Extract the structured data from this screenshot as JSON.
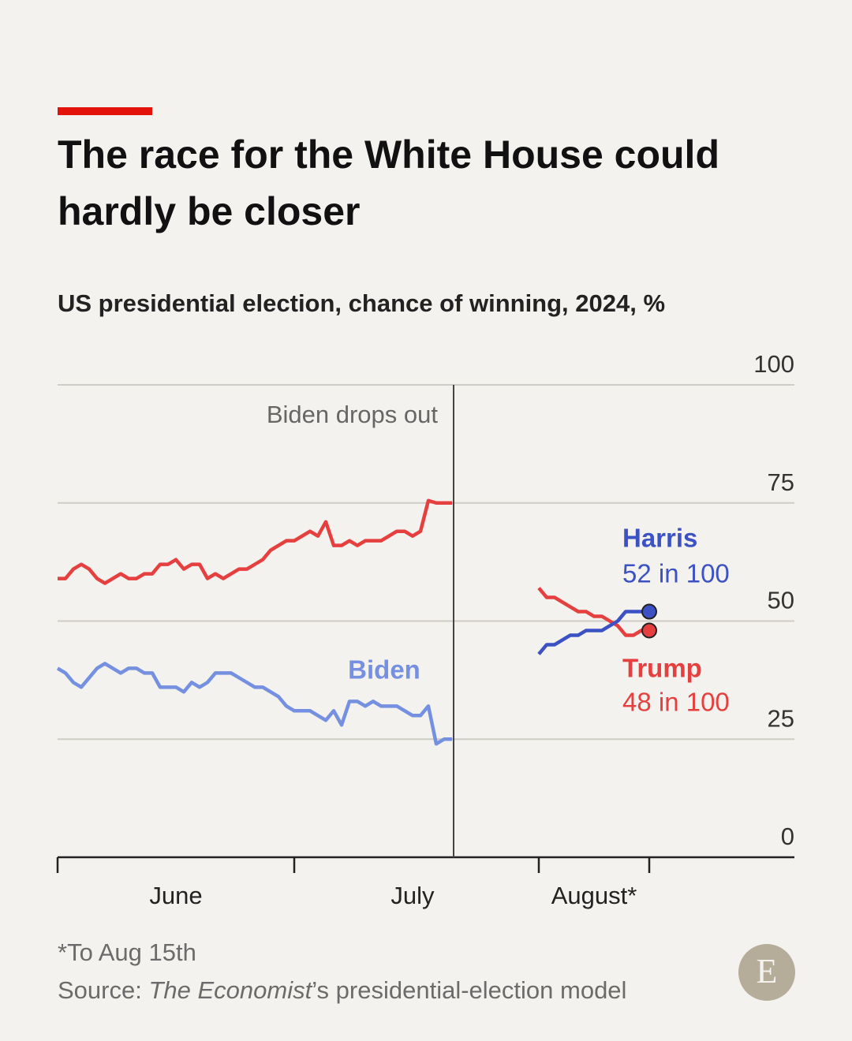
{
  "chart_data": {
    "type": "line",
    "title": "The race for the White House could hardly be closer",
    "subtitle": "US presidential election, chance of winning, 2024, %",
    "annotation": "Biden drops out",
    "footnote": "*To Aug 15th",
    "source": {
      "prefix": "Source:",
      "italic": "The Economist",
      "suffix": "’s presidential-election model"
    },
    "logo": "E",
    "categories": [
      null,
      null,
      null,
      null,
      null,
      null,
      null,
      null,
      null,
      null,
      null,
      null,
      null,
      null,
      null,
      "June",
      null,
      null,
      null,
      null,
      null,
      null,
      null,
      null,
      null,
      null,
      null,
      null,
      null,
      null,
      null,
      null,
      null,
      null,
      null,
      null,
      null,
      null,
      null,
      null,
      null,
      null,
      null,
      null,
      null,
      "July",
      null,
      null,
      null,
      null,
      null,
      null,
      null,
      null,
      null,
      null,
      null,
      null,
      null,
      null,
      null,
      null,
      null,
      null,
      null,
      null,
      null,
      null,
      "August*",
      null,
      null,
      null,
      null,
      null,
      null,
      null
    ],
    "ylim": [
      0,
      100
    ],
    "yticks": [
      0,
      25,
      50,
      75,
      100
    ],
    "grid": true,
    "series": [
      {
        "name": "Trump",
        "color": "#e5403f",
        "values": [
          59,
          59,
          61,
          62,
          61,
          59,
          58,
          59,
          60,
          59,
          59,
          60,
          60,
          62,
          62,
          63,
          61,
          62,
          62,
          59,
          60,
          59,
          60,
          61,
          61,
          62,
          63,
          65,
          66,
          67,
          67,
          68,
          69,
          68,
          71,
          66,
          66,
          67,
          66,
          67,
          67,
          67,
          68,
          69,
          69,
          68,
          69,
          75.5,
          75,
          75,
          75,
          null,
          null,
          null,
          null,
          null,
          null,
          null,
          null,
          null,
          null,
          57,
          55,
          55,
          54,
          53,
          52,
          52,
          51,
          51,
          50,
          49,
          47,
          47,
          48,
          48
        ],
        "value_labels": [
          null,
          null,
          null,
          null,
          null,
          null,
          null,
          null,
          null,
          null,
          null,
          null,
          null,
          null,
          null,
          null,
          null,
          null,
          null,
          null,
          null,
          null,
          null,
          null,
          null,
          null,
          null,
          null,
          null,
          null,
          null,
          null,
          null,
          null,
          null,
          null,
          null,
          null,
          null,
          null,
          null,
          null,
          null,
          null,
          null,
          null,
          null,
          null,
          null,
          null,
          null,
          null,
          null,
          null,
          null,
          null,
          null,
          null,
          null,
          null,
          null,
          null,
          null,
          null,
          null,
          null,
          null,
          null,
          null,
          null,
          null,
          null,
          null,
          null,
          null,
          "48 in 100"
        ]
      },
      {
        "name": "Biden",
        "color": "#7590e0",
        "values": [
          40,
          39,
          37,
          36,
          38,
          40,
          41,
          40,
          39,
          40,
          40,
          39,
          39,
          36,
          36,
          36,
          35,
          37,
          36,
          37,
          39,
          39,
          39,
          38,
          37,
          36,
          36,
          35,
          34,
          32,
          31,
          31,
          31,
          30,
          29,
          31,
          28,
          33,
          33,
          32,
          33,
          32,
          32,
          32,
          31,
          30,
          30,
          32,
          24,
          25,
          25,
          null,
          null,
          null,
          null,
          null,
          null,
          null,
          null,
          null,
          null,
          null,
          null,
          null,
          null,
          null,
          null,
          null,
          null,
          null,
          null,
          null,
          null,
          null,
          null,
          null
        ]
      },
      {
        "name": "Harris",
        "color": "#3c52c4",
        "values": [
          null,
          null,
          null,
          null,
          null,
          null,
          null,
          null,
          null,
          null,
          null,
          null,
          null,
          null,
          null,
          null,
          null,
          null,
          null,
          null,
          null,
          null,
          null,
          null,
          null,
          null,
          null,
          null,
          null,
          null,
          null,
          null,
          null,
          null,
          null,
          null,
          null,
          null,
          null,
          null,
          null,
          null,
          null,
          null,
          null,
          null,
          null,
          null,
          null,
          null,
          null,
          null,
          null,
          null,
          null,
          null,
          null,
          null,
          null,
          null,
          null,
          43,
          45,
          45,
          46,
          47,
          47,
          48,
          48,
          48,
          49,
          50,
          52,
          52,
          52,
          52
        ],
        "value_labels": [
          null,
          null,
          null,
          null,
          null,
          null,
          null,
          null,
          null,
          null,
          null,
          null,
          null,
          null,
          null,
          null,
          null,
          null,
          null,
          null,
          null,
          null,
          null,
          null,
          null,
          null,
          null,
          null,
          null,
          null,
          null,
          null,
          null,
          null,
          null,
          null,
          null,
          null,
          null,
          null,
          null,
          null,
          null,
          null,
          null,
          null,
          null,
          null,
          null,
          null,
          null,
          null,
          null,
          null,
          null,
          null,
          null,
          null,
          null,
          null,
          null,
          null,
          null,
          null,
          null,
          null,
          null,
          null,
          null,
          null,
          null,
          null,
          null,
          null,
          null,
          "52 in 100"
        ]
      }
    ]
  }
}
